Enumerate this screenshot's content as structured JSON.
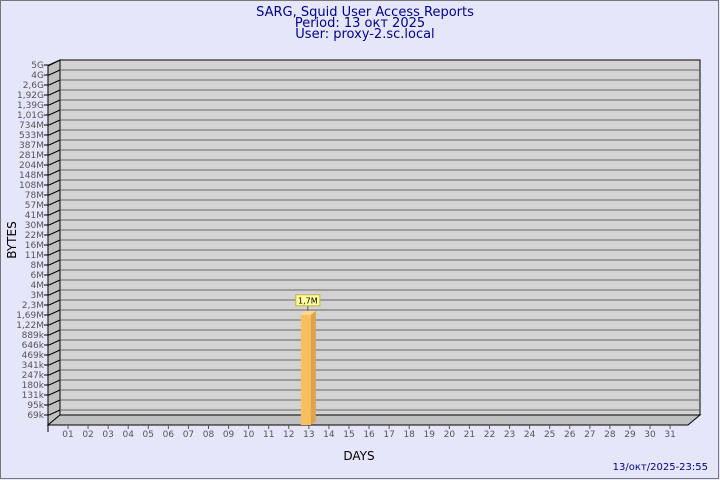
{
  "chart_data": {
    "type": "bar",
    "title": "SARG, Squid User Access Reports",
    "subtitle_period": "Period: 13 окт 2025",
    "subtitle_user": "User: proxy-2.sc.local",
    "xlabel": "DAYS",
    "ylabel": "BYTES",
    "y_scale": "log",
    "y_tick_labels": [
      "5G",
      "4G",
      "2,6G",
      "1,92G",
      "1,39G",
      "1,01G",
      "734M",
      "533M",
      "387M",
      "281M",
      "204M",
      "148M",
      "108M",
      "78M",
      "57M",
      "41M",
      "30M",
      "22M",
      "16M",
      "11M",
      "8M",
      "6M",
      "4M",
      "3M",
      "2,3M",
      "1,69M",
      "1,22M",
      "889k",
      "646k",
      "469k",
      "341k",
      "247k",
      "180k",
      "131k",
      "95k",
      "69k"
    ],
    "categories": [
      "01",
      "02",
      "03",
      "04",
      "05",
      "06",
      "07",
      "08",
      "09",
      "10",
      "11",
      "12",
      "13",
      "14",
      "15",
      "16",
      "17",
      "18",
      "19",
      "20",
      "21",
      "22",
      "23",
      "24",
      "25",
      "26",
      "27",
      "28",
      "29",
      "30",
      "31"
    ],
    "bars": [
      {
        "day": "13",
        "value": "1,7M",
        "label": "1,7M"
      }
    ],
    "grid": true,
    "colors": {
      "bar": "#f8bf60",
      "bar_side": "#e0a24c",
      "plot": "#d3d3d3",
      "background": "#e6e6fa",
      "title": "#00008b"
    }
  },
  "footer": {
    "timestamp": "13/окт/2025-23:55"
  }
}
